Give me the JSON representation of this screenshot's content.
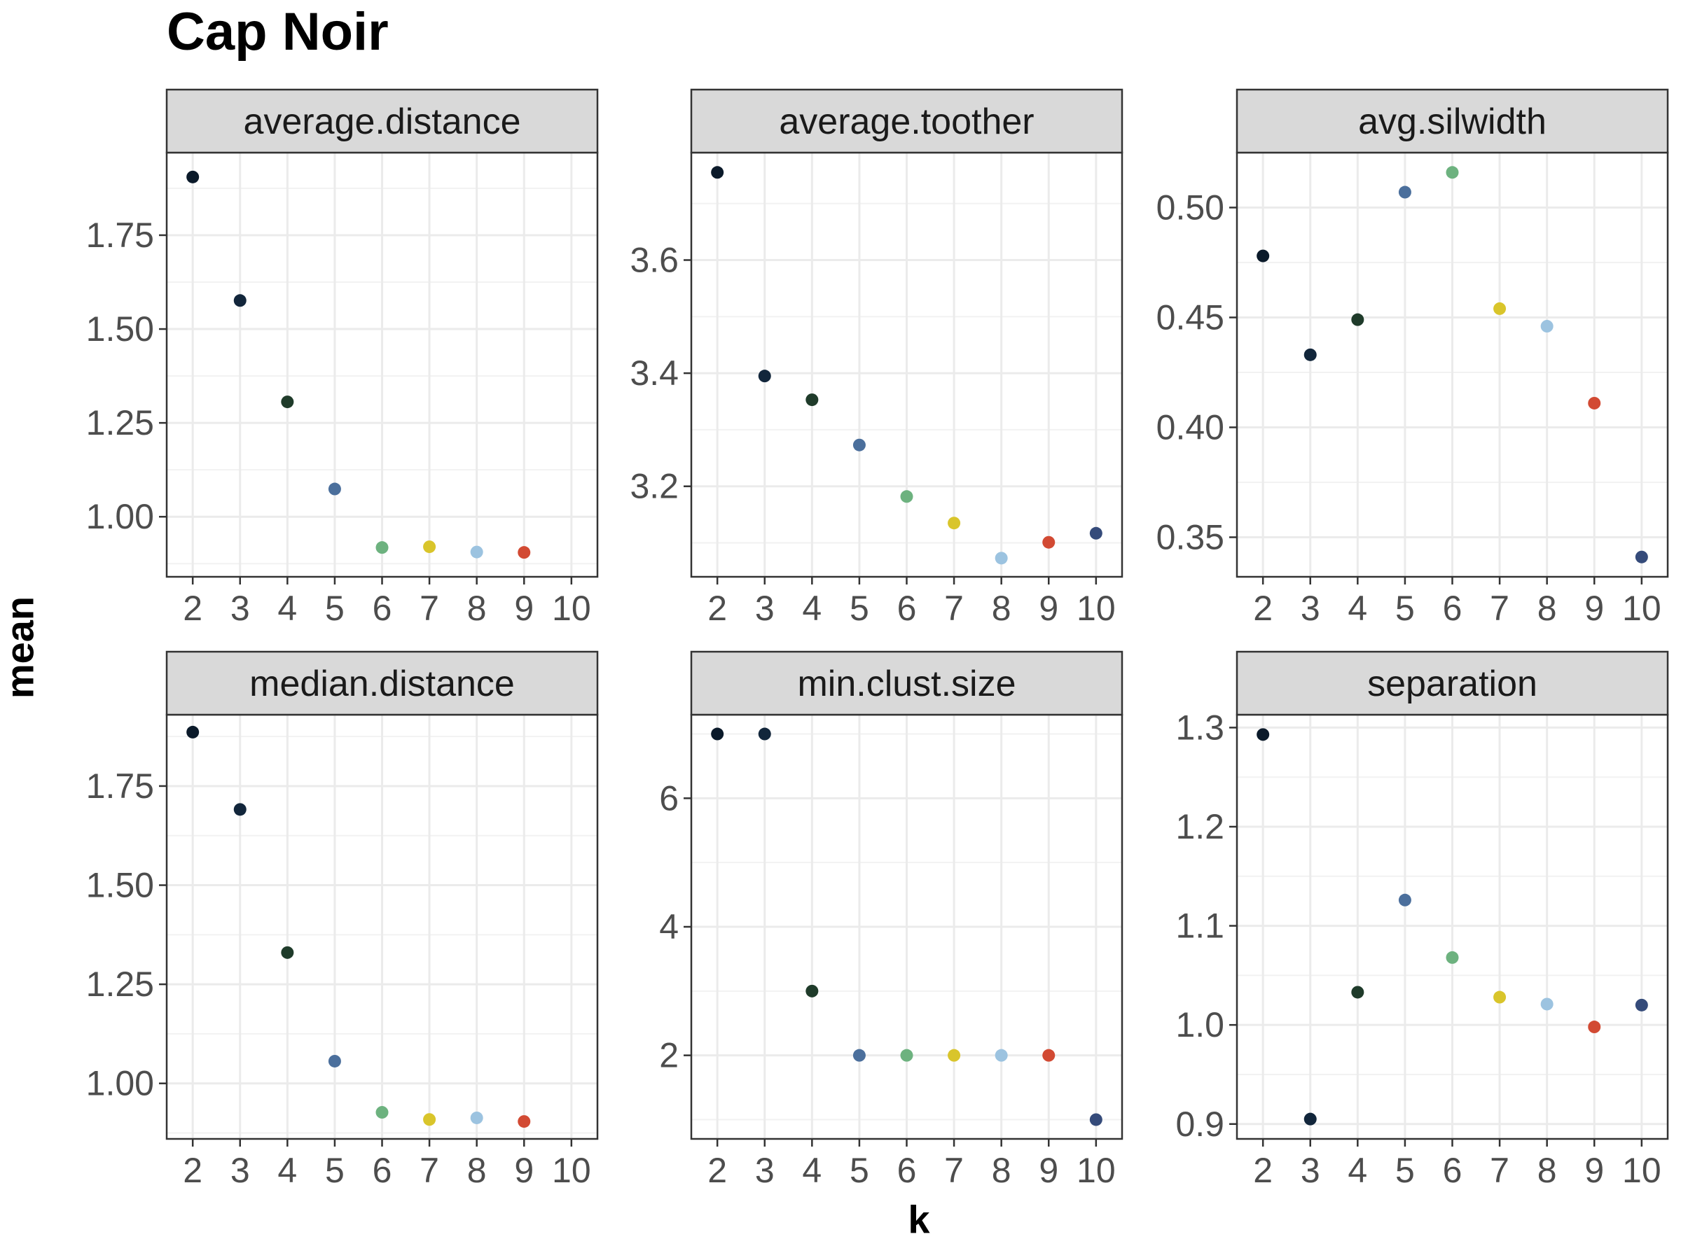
{
  "title": "Cap Noir",
  "xlabel": "k",
  "ylabel": "mean",
  "colors": {
    "k2": "#0b1a2a",
    "k3": "#12263b",
    "k4": "#1f3b2a",
    "k5": "#4b6f9c",
    "k6": "#6db27f",
    "k7": "#d9c52b",
    "k8": "#9cc3e0",
    "k9": "#d24a33",
    "k10": "#354b7a"
  },
  "chart_data": [
    {
      "type": "scatter",
      "panel": "average.distance",
      "x": [
        2,
        3,
        4,
        5,
        6,
        7,
        8,
        9
      ],
      "y": [
        1.905,
        1.576,
        1.306,
        1.074,
        0.918,
        0.92,
        0.906,
        0.905
      ],
      "xlim": [
        1.45,
        10.55
      ],
      "ylim": [
        0.84,
        1.97
      ],
      "xticks": [
        "2",
        "3",
        "4",
        "5",
        "6",
        "7",
        "8",
        "9",
        "10"
      ],
      "yticks": [
        1.0,
        1.25,
        1.5,
        1.75
      ],
      "ytick_labels": [
        "1.00",
        "1.25",
        "1.50",
        "1.75"
      ],
      "grid": true
    },
    {
      "type": "scatter",
      "panel": "average.toother",
      "x": [
        2,
        3,
        4,
        5,
        6,
        7,
        8,
        9,
        10
      ],
      "y": [
        3.755,
        3.395,
        3.353,
        3.273,
        3.182,
        3.135,
        3.073,
        3.101,
        3.117
      ],
      "xlim": [
        1.45,
        10.55
      ],
      "ylim": [
        3.04,
        3.79
      ],
      "xticks": [
        "2",
        "3",
        "4",
        "5",
        "6",
        "7",
        "8",
        "9",
        "10"
      ],
      "yticks": [
        3.2,
        3.4,
        3.6
      ],
      "ytick_labels": [
        "3.2",
        "3.4",
        "3.6"
      ],
      "grid": true
    },
    {
      "type": "scatter",
      "panel": "avg.silwidth",
      "x": [
        2,
        3,
        4,
        5,
        6,
        7,
        8,
        9,
        10
      ],
      "y": [
        0.478,
        0.433,
        0.449,
        0.507,
        0.516,
        0.454,
        0.446,
        0.411,
        0.341
      ],
      "xlim": [
        1.45,
        10.55
      ],
      "ylim": [
        0.332,
        0.525
      ],
      "xticks": [
        "2",
        "3",
        "4",
        "5",
        "6",
        "7",
        "8",
        "9",
        "10"
      ],
      "yticks": [
        0.35,
        0.4,
        0.45,
        0.5
      ],
      "ytick_labels": [
        "0.35",
        "0.40",
        "0.45",
        "0.50"
      ],
      "grid": true
    },
    {
      "type": "scatter",
      "panel": "median.distance",
      "x": [
        2,
        3,
        4,
        5,
        6,
        7,
        8,
        9
      ],
      "y": [
        1.886,
        1.691,
        1.33,
        1.056,
        0.927,
        0.909,
        0.913,
        0.904
      ],
      "xlim": [
        1.45,
        10.55
      ],
      "ylim": [
        0.86,
        1.93
      ],
      "xticks": [
        "2",
        "3",
        "4",
        "5",
        "6",
        "7",
        "8",
        "9",
        "10"
      ],
      "yticks": [
        1.0,
        1.25,
        1.5,
        1.75
      ],
      "ytick_labels": [
        "1.00",
        "1.25",
        "1.50",
        "1.75"
      ],
      "grid": true
    },
    {
      "type": "scatter",
      "panel": "min.clust.size",
      "x": [
        2,
        3,
        4,
        5,
        6,
        7,
        8,
        9,
        10
      ],
      "y": [
        7,
        7,
        3,
        2,
        2,
        2,
        2,
        2,
        1
      ],
      "xlim": [
        1.45,
        10.55
      ],
      "ylim": [
        0.7,
        7.3
      ],
      "xticks": [
        "2",
        "3",
        "4",
        "5",
        "6",
        "7",
        "8",
        "9",
        "10"
      ],
      "yticks": [
        2,
        4,
        6
      ],
      "ytick_labels": [
        "2",
        "4",
        "6"
      ],
      "grid": true
    },
    {
      "type": "scatter",
      "panel": "separation",
      "x": [
        2,
        3,
        4,
        5,
        6,
        7,
        8,
        9,
        10
      ],
      "y": [
        1.293,
        0.905,
        1.033,
        1.126,
        1.068,
        1.028,
        1.021,
        0.998,
        1.02
      ],
      "xlim": [
        1.45,
        10.55
      ],
      "ylim": [
        0.885,
        1.313
      ],
      "xticks": [
        "2",
        "3",
        "4",
        "5",
        "6",
        "7",
        "8",
        "9",
        "10"
      ],
      "yticks": [
        0.9,
        1.0,
        1.1,
        1.2,
        1.3
      ],
      "ytick_labels": [
        "0.9",
        "1.0",
        "1.1",
        "1.2",
        "1.3"
      ],
      "grid": true
    }
  ]
}
